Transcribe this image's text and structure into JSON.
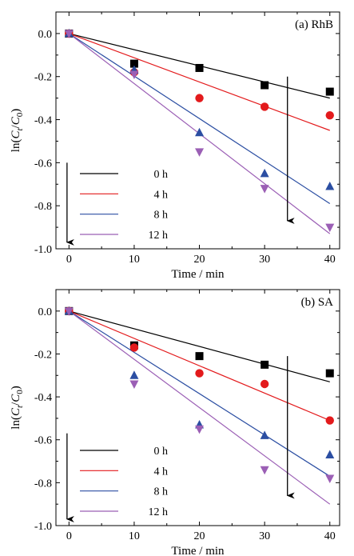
{
  "chart_data": [
    {
      "type": "scatter",
      "panel_label": "(a) RhB",
      "xlabel": "Time / min",
      "ylabel": {
        "prefix": "ln(",
        "c": "C",
        "t": "t",
        "sep": "/",
        "c0": "C",
        "zero": "0",
        "suffix": ")"
      },
      "xlim": [
        -2,
        41.5
      ],
      "ylim": [
        -1.0,
        0.1
      ],
      "xticks": [
        0,
        10,
        20,
        30,
        40
      ],
      "yticks": [
        0.0,
        -0.2,
        -0.4,
        -0.6,
        -0.8,
        -1.0
      ],
      "xtick_labels": [
        "0",
        "10",
        "20",
        "30",
        "40"
      ],
      "ytick_labels": [
        "0.0",
        "-0.2",
        "-0.4",
        "-0.6",
        "-0.8",
        "-1.0"
      ],
      "legend_position": "bottom-left",
      "trend_arrows": [
        {
          "x": 33.5,
          "y_from": -0.2,
          "y_to": -0.87
        },
        {
          "x": -0.3,
          "y_from": -0.6,
          "y_to": -0.97
        }
      ],
      "series": [
        {
          "name": "0 h",
          "color": "#000000",
          "marker": "square",
          "x": [
            0,
            10,
            20,
            30,
            40
          ],
          "y": [
            0.0,
            -0.14,
            -0.16,
            -0.24,
            -0.27
          ],
          "fit": [
            0.0,
            -0.3
          ]
        },
        {
          "name": "4 h",
          "color": "#e31a1c",
          "marker": "circle",
          "x": [
            0,
            10,
            20,
            30,
            40
          ],
          "y": [
            0.0,
            -0.18,
            -0.3,
            -0.34,
            -0.38
          ],
          "fit": [
            0.0,
            -0.45
          ]
        },
        {
          "name": "8 h",
          "color": "#2b4ea2",
          "marker": "triangle-up",
          "x": [
            0,
            10,
            20,
            30,
            40
          ],
          "y": [
            0.0,
            -0.17,
            -0.46,
            -0.65,
            -0.71
          ],
          "fit": [
            0.0,
            -0.79
          ]
        },
        {
          "name": "12 h",
          "color": "#9b5fb5",
          "marker": "triangle-down",
          "x": [
            0,
            10,
            20,
            30,
            40
          ],
          "y": [
            0.0,
            -0.19,
            -0.55,
            -0.72,
            -0.9
          ],
          "fit": [
            0.0,
            -0.93
          ]
        }
      ]
    },
    {
      "type": "scatter",
      "panel_label": "(b) SA",
      "xlabel": "Time / min",
      "ylabel": {
        "prefix": "ln(",
        "c": "C",
        "t": "t",
        "sep": "/",
        "c0": "C",
        "zero": "0",
        "suffix": ")"
      },
      "xlim": [
        -2,
        41.5
      ],
      "ylim": [
        -1.0,
        0.1
      ],
      "xticks": [
        0,
        10,
        20,
        30,
        40
      ],
      "yticks": [
        0.0,
        -0.2,
        -0.4,
        -0.6,
        -0.8,
        -1.0
      ],
      "xtick_labels": [
        "0",
        "10",
        "20",
        "30",
        "40"
      ],
      "ytick_labels": [
        "0.0",
        "-0.2",
        "-0.4",
        "-0.6",
        "-0.8",
        "-1.0"
      ],
      "legend_position": "bottom-left",
      "trend_arrows": [
        {
          "x": 33.5,
          "y_from": -0.21,
          "y_to": -0.86
        },
        {
          "x": -0.3,
          "y_from": -0.57,
          "y_to": -0.97
        }
      ],
      "series": [
        {
          "name": "0 h",
          "color": "#000000",
          "marker": "square",
          "x": [
            0,
            10,
            20,
            30,
            40
          ],
          "y": [
            0.0,
            -0.16,
            -0.21,
            -0.25,
            -0.29
          ],
          "fit": [
            0.0,
            -0.33
          ]
        },
        {
          "name": "4 h",
          "color": "#e31a1c",
          "marker": "circle",
          "x": [
            0,
            10,
            20,
            30,
            40
          ],
          "y": [
            0.0,
            -0.17,
            -0.29,
            -0.34,
            -0.51
          ],
          "fit": [
            0.0,
            -0.51
          ]
        },
        {
          "name": "8 h",
          "color": "#2b4ea2",
          "marker": "triangle-up",
          "x": [
            0,
            10,
            20,
            30,
            40
          ],
          "y": [
            0.0,
            -0.3,
            -0.53,
            -0.58,
            -0.67
          ],
          "fit": [
            0.0,
            -0.77
          ]
        },
        {
          "name": "12 h",
          "color": "#9b5fb5",
          "marker": "triangle-down",
          "x": [
            0,
            10,
            20,
            30,
            40
          ],
          "y": [
            0.0,
            -0.34,
            -0.55,
            -0.74,
            -0.78
          ],
          "fit": [
            0.0,
            -0.9
          ]
        }
      ]
    }
  ]
}
